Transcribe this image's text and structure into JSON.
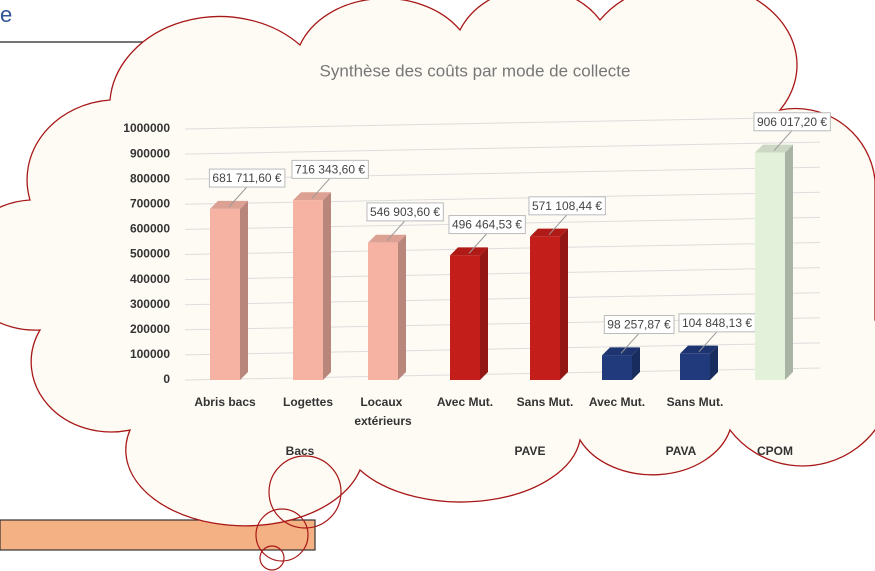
{
  "heading": "e",
  "chart_data": {
    "type": "bar3d",
    "title": "Synthèse des coûts par mode de collecte",
    "categories": [
      "Abris bacs",
      "Logettes",
      "Locaux extérieurs",
      "Avec Mut.",
      "Sans Mut.",
      "Avec Mut.",
      "Sans Mut.",
      null
    ],
    "category_groups": [
      "Bacs",
      "Bacs",
      "Bacs",
      "PAVE",
      "PAVE",
      "PAVA",
      "PAVA",
      "CPOM"
    ],
    "values": [
      681711.6,
      716343.6,
      546903.6,
      496464.53,
      571108.44,
      98257.87,
      104848.13,
      906017.2
    ],
    "value_labels": [
      "681 711,60 €",
      "716 343,60 €",
      "546 903,60 €",
      "496 464,53 €",
      "571 108,44 €",
      "98 257,87 €",
      "104 848,13 €",
      "906 017,20 €"
    ],
    "colors": [
      "#f6b3a4",
      "#f6b3a4",
      "#f6b3a4",
      "#c41e1a",
      "#c41e1a",
      "#203a7c",
      "#203a7c",
      "#e3f0da"
    ],
    "ylim": [
      0,
      1000000
    ],
    "yticks": [
      0,
      100000,
      200000,
      300000,
      400000,
      500000,
      600000,
      700000,
      800000,
      900000,
      1000000
    ],
    "grid": true
  }
}
